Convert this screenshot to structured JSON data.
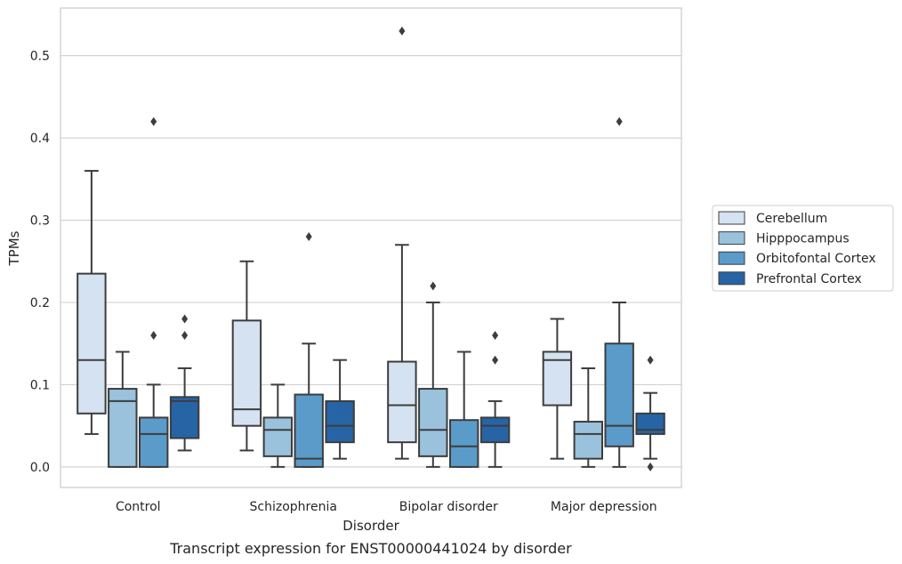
{
  "chart_data": {
    "type": "box",
    "title": "Transcript expression for ENST00000441024 by disorder",
    "xlabel": "Disorder",
    "ylabel": "TPMs",
    "ylim": [
      -0.025,
      0.558
    ],
    "yticks": [
      0.0,
      0.1,
      0.2,
      0.3,
      0.4,
      0.5
    ],
    "ytick_labels": [
      "0.0",
      "0.1",
      "0.2",
      "0.3",
      "0.4",
      "0.5"
    ],
    "grid": "horizontal",
    "legend_position": "right",
    "categories": [
      "Control",
      "Schizophrenia",
      "Bipolar disorder",
      "Major depression"
    ],
    "series": [
      {
        "name": "Cerebellum",
        "color": "#d5e2f1",
        "boxes": [
          {
            "whislo": 0.04,
            "q1": 0.065,
            "med": 0.13,
            "q3": 0.235,
            "whishi": 0.36,
            "fliers": []
          },
          {
            "whislo": 0.02,
            "q1": 0.05,
            "med": 0.07,
            "q3": 0.178,
            "whishi": 0.25,
            "fliers": []
          },
          {
            "whislo": 0.01,
            "q1": 0.03,
            "med": 0.075,
            "q3": 0.128,
            "whishi": 0.27,
            "fliers": [
              0.53
            ]
          },
          {
            "whislo": 0.01,
            "q1": 0.075,
            "med": 0.13,
            "q3": 0.14,
            "whishi": 0.18,
            "fliers": []
          }
        ]
      },
      {
        "name": "Hipppocampus",
        "color": "#9ac2dc",
        "boxes": [
          {
            "whislo": 0.0,
            "q1": 0.0,
            "med": 0.08,
            "q3": 0.095,
            "whishi": 0.14,
            "fliers": []
          },
          {
            "whislo": 0.0,
            "q1": 0.013,
            "med": 0.045,
            "q3": 0.06,
            "whishi": 0.1,
            "fliers": []
          },
          {
            "whislo": 0.0,
            "q1": 0.013,
            "med": 0.045,
            "q3": 0.095,
            "whishi": 0.2,
            "fliers": [
              0.22
            ]
          },
          {
            "whislo": 0.0,
            "q1": 0.01,
            "med": 0.04,
            "q3": 0.055,
            "whishi": 0.12,
            "fliers": []
          }
        ]
      },
      {
        "name": "Orbitofontal Cortex",
        "color": "#5a9bc9",
        "boxes": [
          {
            "whislo": 0.0,
            "q1": 0.0,
            "med": 0.04,
            "q3": 0.06,
            "whishi": 0.1,
            "fliers": [
              0.16,
              0.42
            ]
          },
          {
            "whislo": 0.0,
            "q1": 0.0,
            "med": 0.01,
            "q3": 0.088,
            "whishi": 0.15,
            "fliers": [
              0.28
            ]
          },
          {
            "whislo": 0.0,
            "q1": 0.0,
            "med": 0.025,
            "q3": 0.057,
            "whishi": 0.14,
            "fliers": []
          },
          {
            "whislo": 0.0,
            "q1": 0.025,
            "med": 0.05,
            "q3": 0.15,
            "whishi": 0.2,
            "fliers": [
              0.42
            ]
          }
        ]
      },
      {
        "name": "Prefrontal Cortex",
        "color": "#2664a5",
        "boxes": [
          {
            "whislo": 0.02,
            "q1": 0.035,
            "med": 0.08,
            "q3": 0.085,
            "whishi": 0.12,
            "fliers": [
              0.16,
              0.18
            ]
          },
          {
            "whislo": 0.01,
            "q1": 0.03,
            "med": 0.05,
            "q3": 0.08,
            "whishi": 0.13,
            "fliers": []
          },
          {
            "whislo": 0.0,
            "q1": 0.03,
            "med": 0.05,
            "q3": 0.06,
            "whishi": 0.08,
            "fliers": [
              0.13,
              0.16
            ]
          },
          {
            "whislo": 0.01,
            "q1": 0.04,
            "med": 0.045,
            "q3": 0.065,
            "whishi": 0.09,
            "fliers": [
              0.0,
              0.13
            ]
          }
        ]
      }
    ]
  }
}
